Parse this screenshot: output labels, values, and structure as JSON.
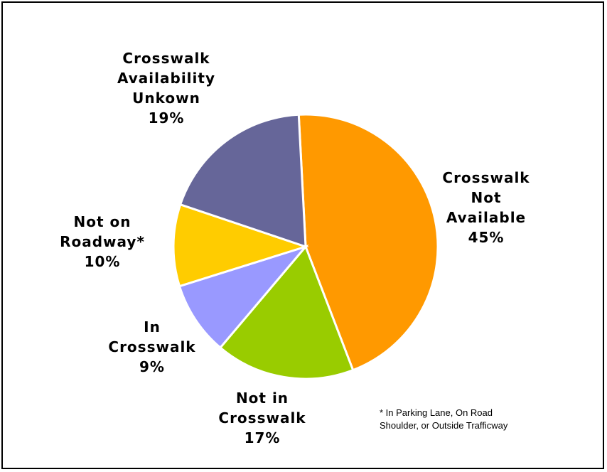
{
  "chart_data": {
    "type": "pie",
    "title": "",
    "slices": [
      {
        "id": "not-available",
        "label_lines": [
          "Crosswalk",
          "Not",
          "Available"
        ],
        "value": 45,
        "value_label": "45%",
        "color": "#FF9900"
      },
      {
        "id": "not-in-crosswalk",
        "label_lines": [
          "Not in",
          "Crosswalk"
        ],
        "value": 17,
        "value_label": "17%",
        "color": "#99CC00"
      },
      {
        "id": "in-crosswalk",
        "label_lines": [
          "In",
          "Crosswalk"
        ],
        "value": 9,
        "value_label": "9%",
        "color": "#9999FF"
      },
      {
        "id": "not-on-roadway",
        "label_lines": [
          "Not on",
          "Roadway*"
        ],
        "value": 10,
        "value_label": "10%",
        "color": "#FFCC00"
      },
      {
        "id": "availability-unknown",
        "label_lines": [
          "Crosswalk",
          "Availability",
          "Unkown"
        ],
        "value": 19,
        "value_label": "19%",
        "color": "#666699"
      }
    ],
    "footnote_lines": [
      "* In Parking Lane, On Road",
      "Shoulder, or Outside Trafficway"
    ]
  }
}
